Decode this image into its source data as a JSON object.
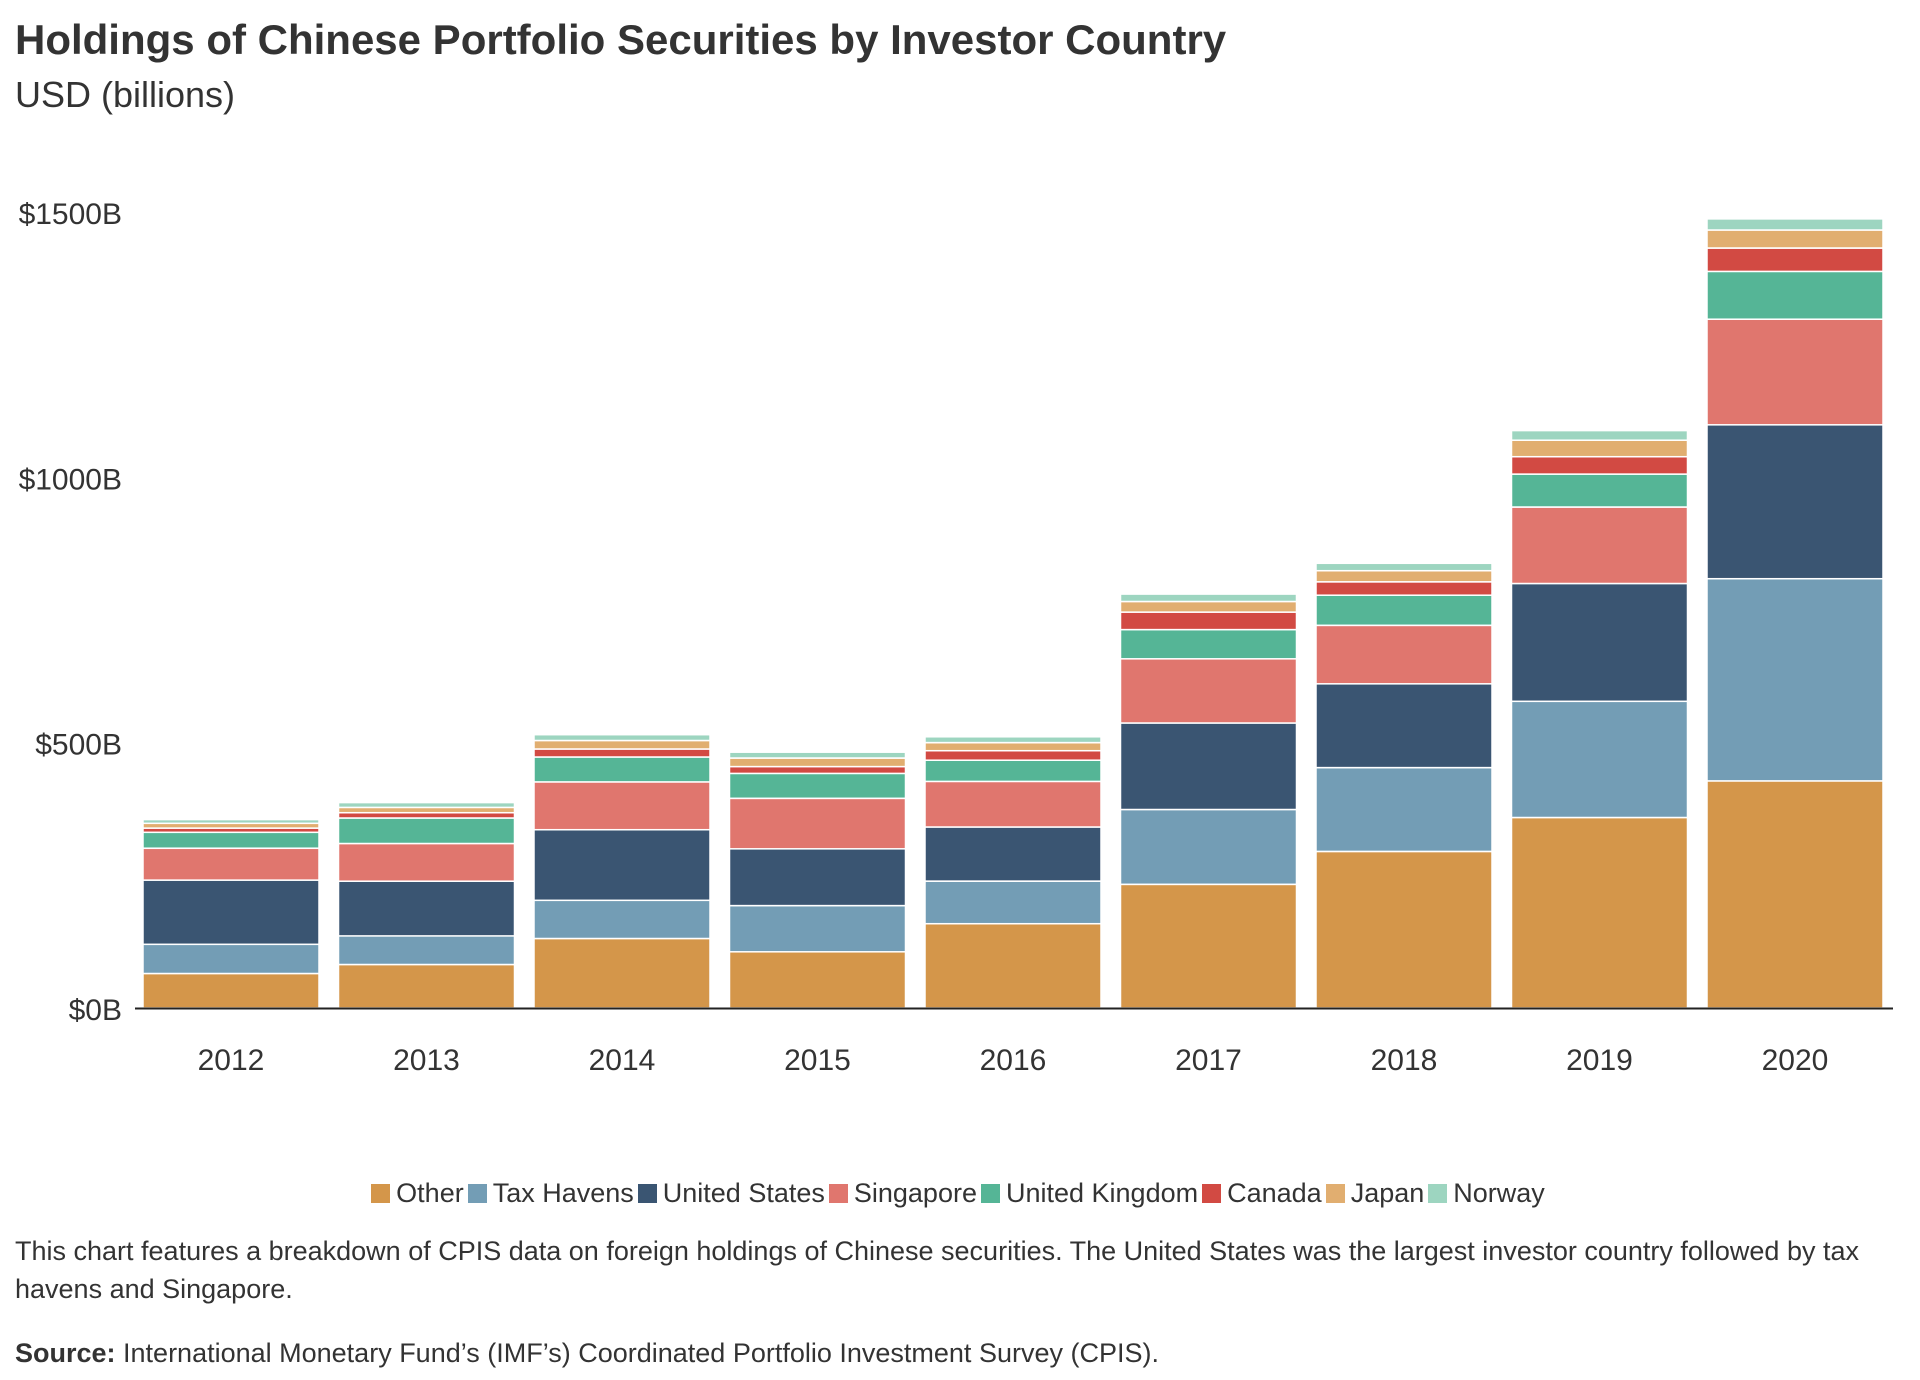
{
  "chart_data": {
    "type": "bar",
    "stacked": true,
    "title": "Holdings of Chinese Portfolio Securities by Investor Country",
    "subtitle": "USD (billions)",
    "categories": [
      "2012",
      "2013",
      "2014",
      "2015",
      "2016",
      "2017",
      "2018",
      "2019",
      "2020"
    ],
    "yticks": [
      "$0B",
      "$500B",
      "$1000B",
      "$1500B"
    ],
    "ytick_values": [
      0,
      500,
      1000,
      1500
    ],
    "ylim": [
      0,
      1500
    ],
    "grid": false,
    "legend_position": "bottom-center",
    "series": [
      {
        "name": "Other",
        "color": "#d4964a",
        "values": [
          65,
          82,
          131,
          106,
          159,
          233,
          295,
          359,
          428
        ]
      },
      {
        "name": "Tax Havens",
        "color": "#739db5",
        "values": [
          55,
          54,
          72,
          87,
          80,
          141,
          158,
          219,
          381
        ]
      },
      {
        "name": "United States",
        "color": "#3a5572",
        "values": [
          121,
          103,
          133,
          107,
          102,
          163,
          158,
          222,
          290
        ]
      },
      {
        "name": "Singapore",
        "color": "#e0766e",
        "values": [
          60,
          71,
          90,
          95,
          86,
          121,
          110,
          144,
          199
        ]
      },
      {
        "name": "United Kingdom",
        "color": "#55b596",
        "values": [
          30,
          48,
          47,
          47,
          40,
          55,
          57,
          62,
          90
        ]
      },
      {
        "name": "Canada",
        "color": "#d24a43",
        "values": [
          8,
          10,
          15,
          13,
          18,
          33,
          25,
          33,
          44
        ]
      },
      {
        "name": "Japan",
        "color": "#e1ae70",
        "values": [
          9,
          10,
          16,
          16,
          15,
          20,
          21,
          31,
          34
        ]
      },
      {
        "name": "Norway",
        "color": "#9dd5c0",
        "values": [
          7,
          9,
          11,
          11,
          11,
          14,
          14,
          18,
          21
        ]
      }
    ]
  },
  "description": "This chart features a breakdown of CPIS data on foreign holdings of Chinese securities. The United States was the largest investor country followed by tax havens and Singapore.",
  "source": {
    "label": "Source:",
    "text": " International Monetary Fund’s (IMF’s) Coordinated Portfolio Investment Survey (CPIS)."
  }
}
